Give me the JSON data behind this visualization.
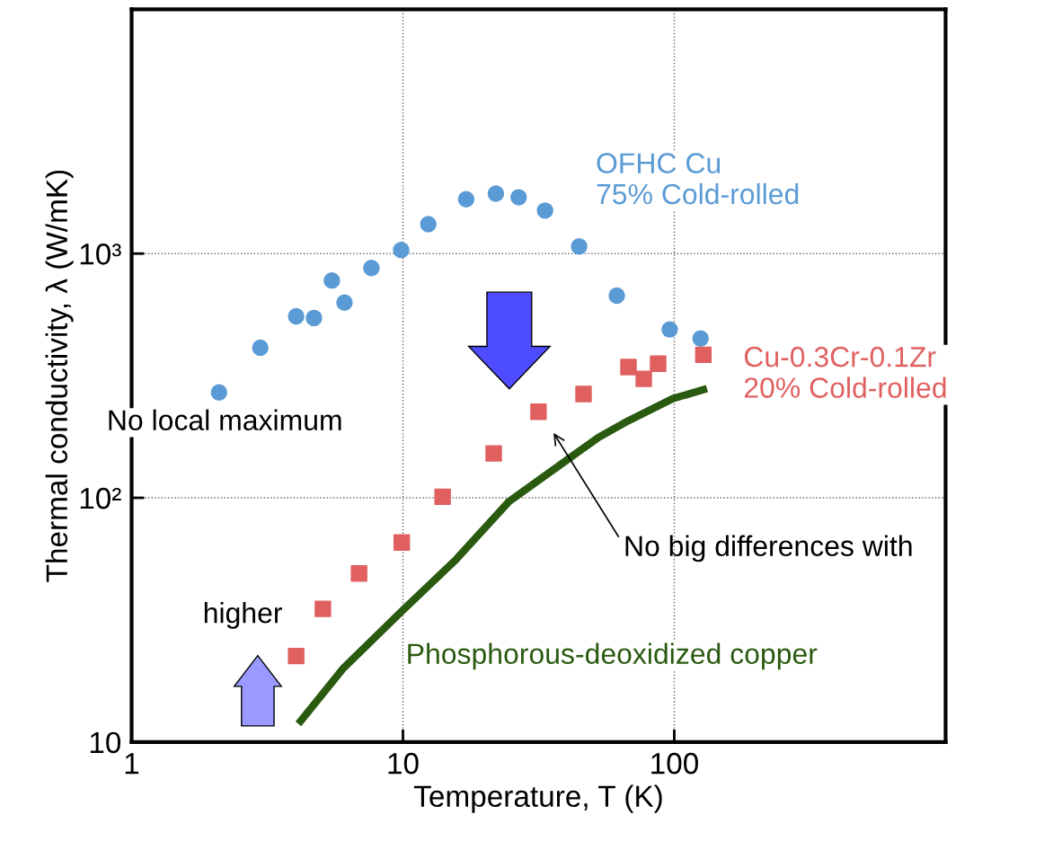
{
  "chart_data": {
    "type": "scatter",
    "xlabel": "Temperature, T (K)",
    "ylabel": "Thermal conductivity, λ (W/mK)",
    "log": "xy",
    "xlim": [
      1,
      1000
    ],
    "ylim": [
      10,
      10000
    ],
    "xticks": [
      1,
      10,
      100
    ],
    "yticks": [
      10,
      {
        "value": 100,
        "label": "10²"
      },
      {
        "value": 1000,
        "label": "10³"
      }
    ],
    "grid": true,
    "series": [
      {
        "name": "OFHC Cu\n75% Cold-rolled",
        "color": "#5b9bd5",
        "marker": "circle",
        "x": [
          2.1,
          2.98,
          4.04,
          4.7,
          5.47,
          6.09,
          7.65,
          9.85,
          12.4,
          17.1,
          22,
          26.7,
          33.4,
          44.6,
          61.4,
          96.2,
          125
        ],
        "values": [
          270,
          412,
          554,
          545,
          776,
          630,
          873,
          1035,
          1320,
          1670,
          1760,
          1700,
          1500,
          1070,
          673,
          489,
          449
        ]
      },
      {
        "name": "Cu-0.3Cr-0.1Zr\n20% Cold-rolled",
        "color": "#e06060",
        "marker": "square",
        "x": [
          4.04,
          5.07,
          6.89,
          9.9,
          14.0,
          21.6,
          31.6,
          46.3,
          67.8,
          77.2,
          87.2,
          128
        ],
        "values": [
          22.5,
          35.1,
          49,
          65.6,
          101,
          152,
          225,
          266,
          343,
          307,
          354,
          385
        ]
      },
      {
        "name": "Phosphorous-deoxidized copper",
        "color": "#2a5a10",
        "type": "line",
        "marker": "none",
        "line_style": "solid",
        "x": [
          4.2,
          6.04,
          9.9,
          15.6,
          24.6,
          40.6,
          52.7,
          67.8,
          99,
          128
        ],
        "values": [
          12.2,
          20.1,
          34.3,
          55.5,
          96.6,
          144,
          177,
          207,
          255,
          277
        ]
      }
    ],
    "annotations": [
      "No local maximum",
      "higher",
      "No big differences with"
    ]
  }
}
